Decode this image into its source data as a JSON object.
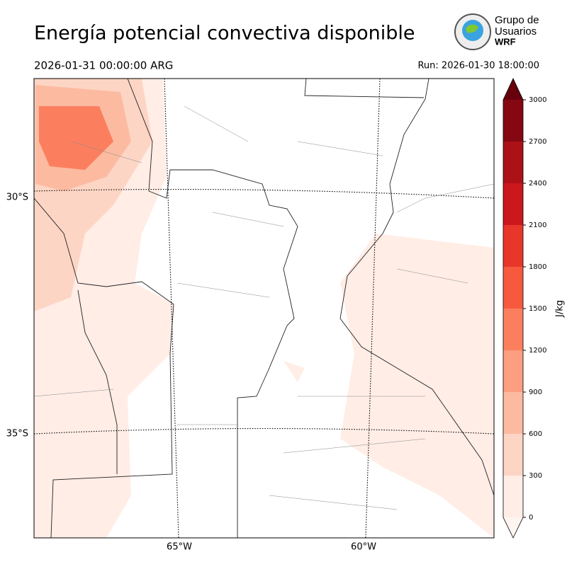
{
  "header": {
    "title": "Energía potencial convectiva disponible",
    "valid_time": "2026-01-31 00:00:00 ARG",
    "run": "Run: 2026-01-30 18:00:00"
  },
  "logo": {
    "lines": [
      "Grupo de",
      "Usuarios",
      "WRF"
    ]
  },
  "map": {
    "lat_labels": [
      "30°S",
      "35°S"
    ],
    "lon_labels": [
      "65°W",
      "60°W"
    ]
  },
  "colorbar": {
    "label": "J/kg",
    "ticks": [
      0,
      300,
      600,
      900,
      1200,
      1500,
      1800,
      2100,
      2400,
      2700,
      3000
    ],
    "colors": [
      "#ffede6",
      "#fdd5c4",
      "#fcbba1",
      "#fc9e80",
      "#fb7f5f",
      "#f7593f",
      "#e8362a",
      "#cb181d",
      "#ac1117",
      "#850711"
    ],
    "under_color": "#fff5f0",
    "over_color": "#67000d"
  }
}
